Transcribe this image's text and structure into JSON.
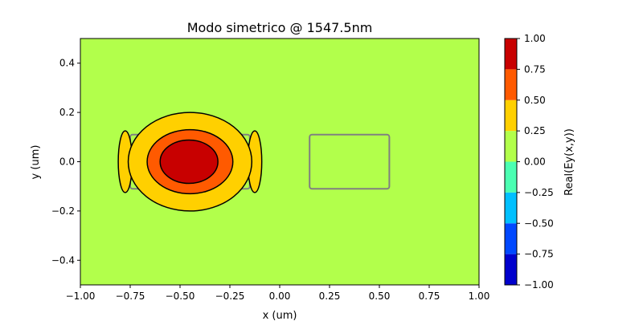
{
  "chart_data": {
    "type": "heatmap",
    "title": "Modo simetrico @ 1547.5nm",
    "xlabel": "x (um)",
    "ylabel": "y (um)",
    "xlim": [
      -1.0,
      1.0
    ],
    "ylim": [
      -0.5,
      0.5
    ],
    "x_ticks": [
      -1.0,
      -0.75,
      -0.5,
      -0.25,
      0.0,
      0.25,
      0.5,
      0.75,
      1.0
    ],
    "x_tick_labels": [
      "−1.00",
      "−0.75",
      "−0.50",
      "−0.25",
      "0.00",
      "0.25",
      "0.50",
      "0.75",
      "1.00"
    ],
    "y_ticks": [
      -0.4,
      -0.2,
      0.0,
      0.2,
      0.4
    ],
    "y_tick_labels": [
      "−0.4",
      "−0.2",
      "0.0",
      "0.2",
      "0.4"
    ],
    "background_color": "#b2ff4b",
    "colorbar": {
      "label": "Real(Ey(x,y))",
      "levels": [
        -1.0,
        -0.75,
        -0.5,
        -0.25,
        0.0,
        0.25,
        0.5,
        0.75,
        1.0
      ],
      "tick_labels": [
        "−1.00",
        "−0.75",
        "−0.50",
        "−0.25",
        "0.00",
        "0.25",
        "0.50",
        "0.75",
        "1.00"
      ],
      "colors": [
        "#0000cd",
        "#0048ff",
        "#00c0ff",
        "#4bffb2",
        "#b2ff4b",
        "#ffd000",
        "#ff5a00",
        "#c80000"
      ]
    },
    "waveguides": [
      {
        "x0": -0.75,
        "x1": -0.15,
        "y0": -0.11,
        "y1": 0.11,
        "color": "#808080"
      },
      {
        "x0": 0.15,
        "x1": 0.55,
        "y0": -0.11,
        "y1": 0.11,
        "color": "#808080"
      }
    ],
    "contours": [
      {
        "level": "0.25-0.50",
        "color": "#ffd000",
        "cx": -0.45,
        "cy": 0.0,
        "rx": 0.31,
        "ry": 0.2
      },
      {
        "level": "0.50-0.75",
        "color": "#ff5a00",
        "cx": -0.45,
        "cy": 0.0,
        "rx": 0.215,
        "ry": 0.13
      },
      {
        "level": "0.75-1.00",
        "color": "#c80000",
        "cx": -0.455,
        "cy": 0.0,
        "rx": 0.145,
        "ry": 0.088
      }
    ],
    "side_lobes": [
      {
        "color": "#ffd000",
        "cx": -0.775,
        "cy": 0.0,
        "rx": 0.035,
        "ry": 0.125
      },
      {
        "color": "#ffd000",
        "cx": -0.125,
        "cy": 0.0,
        "rx": 0.035,
        "ry": 0.125
      }
    ]
  }
}
